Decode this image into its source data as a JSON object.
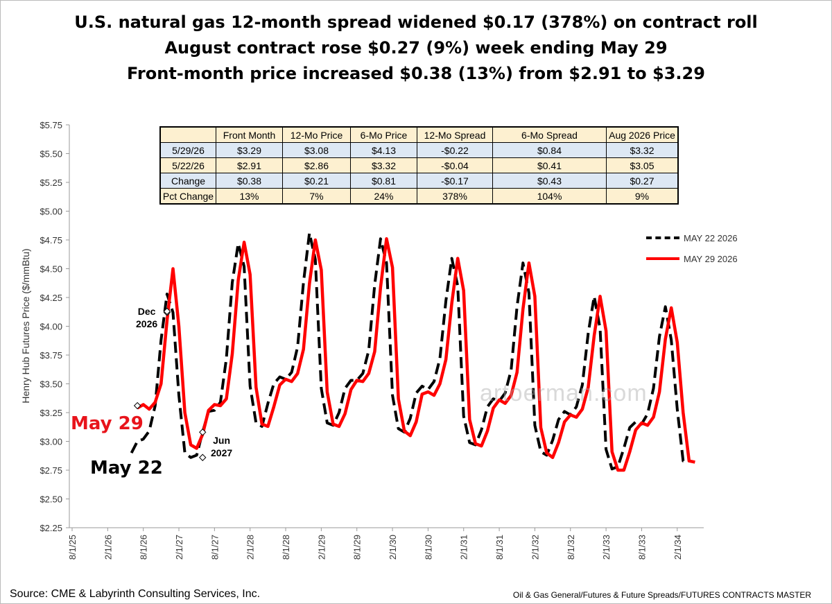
{
  "title_lines": [
    "U.S. natural gas 12-month spread widened $0.17 (378%) on contract roll",
    "August contract rose $0.27 (9%) week ending May 29",
    "Front-month price increased $0.38 (13%) from $2.91 to $3.29"
  ],
  "table": {
    "headers": [
      "",
      "Front Month",
      "12-Mo Price",
      "6-Mo Price",
      "12-Mo Spread",
      "6-Mo Spread",
      "Aug 2026 Price"
    ],
    "rows": [
      [
        "5/29/26",
        "$3.29",
        "$3.08",
        "$4.13",
        "-$0.22",
        "$0.84",
        "$3.32"
      ],
      [
        "5/22/26",
        "$2.91",
        "$2.86",
        "$3.32",
        "-$0.04",
        "$0.41",
        "$3.05"
      ],
      [
        "Change",
        "$0.38",
        "$0.21",
        "$0.81",
        "-$0.17",
        "$0.43",
        "$0.27"
      ],
      [
        "Pct Change",
        "13%",
        "7%",
        "24%",
        "378%",
        "104%",
        "9%"
      ]
    ]
  },
  "labels": {
    "may29": "May 29",
    "may22": "May 22",
    "dec_line1": "Dec",
    "dec_line2": "2026",
    "jun_line1": "Jun",
    "jun_line2": "2027"
  },
  "watermark": "artoerman.com",
  "footer": {
    "source": "Source: CME & Labyrinth Consulting Services, Inc.",
    "path": "Oil & Gas General/Futures & Future Spreads/FUTURES CONTRACTS MASTER"
  },
  "colors": {
    "may29": "#ff0000",
    "may22": "#000000"
  },
  "chart_data": {
    "type": "line",
    "ylabel": "Henry Hub Futures Price ($/mmBtu)",
    "ylim": [
      2.25,
      5.75
    ],
    "yticks": [
      "$2.25",
      "$2.50",
      "$2.75",
      "$3.00",
      "$3.25",
      "$3.50",
      "$3.75",
      "$4.00",
      "$4.25",
      "$4.50",
      "$4.75",
      "$5.00",
      "$5.25",
      "$5.50",
      "$5.75"
    ],
    "xticks": [
      "8/1/25",
      "2/1/26",
      "8/1/26",
      "2/1/27",
      "8/1/27",
      "2/1/28",
      "8/1/28",
      "2/1/29",
      "8/1/29",
      "2/1/30",
      "8/1/30",
      "2/1/31",
      "8/1/31",
      "2/1/32",
      "8/1/32",
      "2/1/33",
      "8/1/33",
      "2/1/34"
    ],
    "x_start": "2025-08",
    "x_end": "2034-06",
    "legend_position": "right",
    "grid": false,
    "series": [
      {
        "name": "MAY 22 2026",
        "style": "dashed",
        "start_month": "2026-06",
        "values": [
          2.9,
          3.0,
          3.02,
          3.09,
          3.31,
          3.88,
          4.28,
          4.12,
          3.4,
          2.9,
          2.86,
          2.88,
          3.08,
          3.26,
          3.27,
          3.34,
          3.72,
          4.38,
          4.72,
          4.52,
          3.48,
          3.16,
          3.13,
          3.33,
          3.5,
          3.56,
          3.54,
          3.6,
          3.82,
          4.38,
          4.81,
          4.58,
          3.46,
          3.16,
          3.14,
          3.25,
          3.46,
          3.53,
          3.53,
          3.59,
          3.79,
          4.36,
          4.76,
          4.55,
          3.4,
          3.11,
          3.08,
          3.2,
          3.42,
          3.48,
          3.45,
          3.52,
          3.72,
          4.22,
          4.59,
          4.35,
          3.22,
          2.99,
          2.97,
          3.1,
          3.3,
          3.37,
          3.35,
          3.42,
          3.62,
          4.17,
          4.55,
          4.29,
          3.14,
          2.91,
          2.88,
          3.01,
          3.19,
          3.26,
          3.23,
          3.3,
          3.49,
          3.94,
          4.26,
          3.98,
          2.93,
          2.76,
          2.78,
          2.94,
          3.12,
          3.17,
          3.15,
          3.24,
          3.46,
          3.91,
          4.17,
          3.88,
          3.28,
          2.83,
          2.83
        ]
      },
      {
        "name": "MAY 29 2026",
        "style": "solid",
        "start_month": "2026-07",
        "values": [
          3.29,
          3.32,
          3.28,
          3.34,
          3.5,
          4.05,
          4.5,
          4.0,
          3.25,
          2.97,
          2.94,
          3.06,
          3.27,
          3.32,
          3.31,
          3.37,
          3.76,
          4.4,
          4.73,
          4.45,
          3.47,
          3.15,
          3.13,
          3.3,
          3.49,
          3.54,
          3.52,
          3.59,
          3.8,
          4.37,
          4.75,
          4.49,
          3.43,
          3.15,
          3.13,
          3.24,
          3.45,
          3.53,
          3.52,
          3.59,
          3.78,
          4.34,
          4.76,
          4.51,
          3.37,
          3.09,
          3.05,
          3.17,
          3.41,
          3.43,
          3.4,
          3.5,
          3.71,
          4.2,
          4.59,
          4.31,
          3.19,
          2.98,
          2.96,
          3.09,
          3.29,
          3.36,
          3.33,
          3.4,
          3.6,
          4.15,
          4.55,
          4.26,
          3.12,
          2.9,
          2.86,
          2.99,
          3.17,
          3.23,
          3.21,
          3.28,
          3.47,
          3.92,
          4.26,
          3.96,
          2.91,
          2.75,
          2.75,
          2.91,
          3.1,
          3.16,
          3.14,
          3.21,
          3.43,
          3.89,
          4.16,
          3.86,
          3.25,
          2.83,
          2.82
        ]
      }
    ],
    "markers": [
      {
        "series": "MAY 22 2026",
        "month": "2026-07",
        "value": 3.31
      },
      {
        "series": "MAY 22 2026",
        "month": "2026-12",
        "value": 4.12
      },
      {
        "series": "MAY 29 2026",
        "month": "2026-12",
        "value": 4.13
      },
      {
        "series": "MAY 22 2027",
        "month": "2027-06",
        "value": 2.86
      },
      {
        "series": "MAY 29 2026",
        "month": "2027-06",
        "value": 3.08
      }
    ]
  }
}
